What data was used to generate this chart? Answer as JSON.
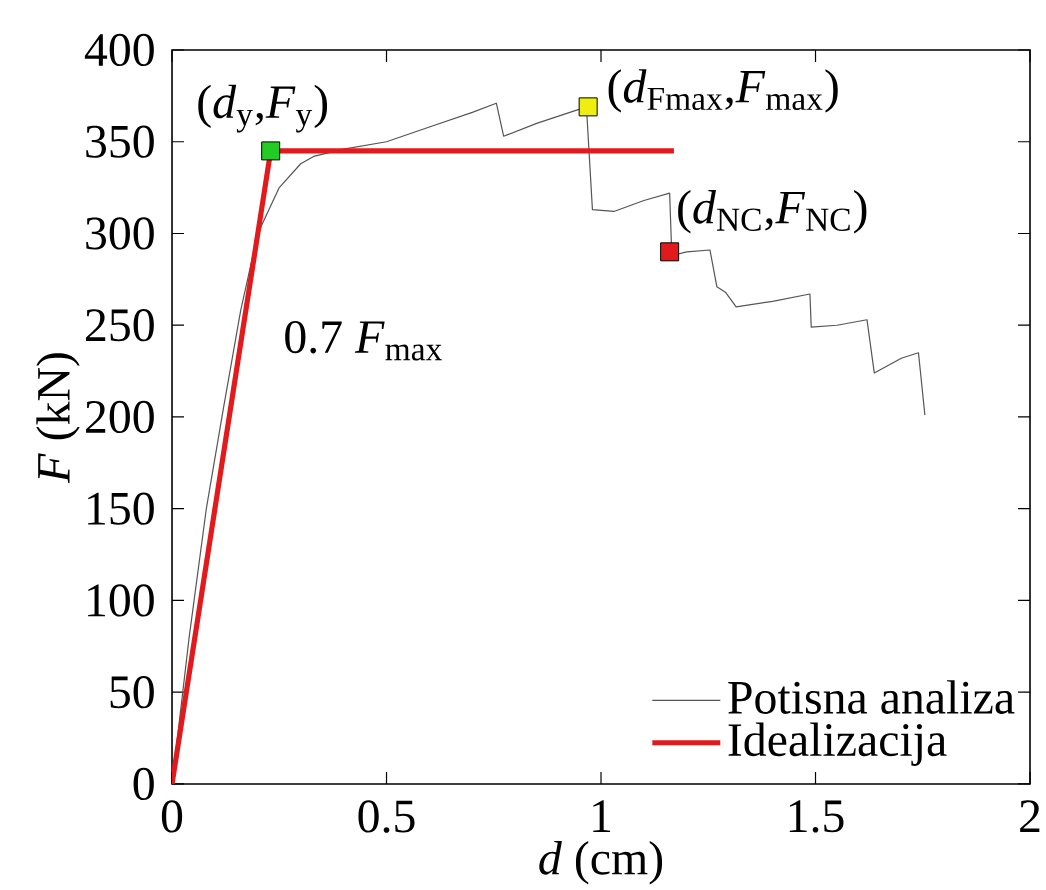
{
  "chart_data": {
    "type": "line",
    "xlabel": "*d* (cm)",
    "ylabel": "*F* (kN)",
    "xlim": [
      0,
      2
    ],
    "ylim": [
      0,
      400
    ],
    "xticks": [
      0,
      0.5,
      1,
      1.5,
      2
    ],
    "yticks": [
      0,
      50,
      100,
      150,
      200,
      250,
      300,
      350,
      400
    ],
    "grid": false,
    "legend": "bottom right",
    "series": [
      {
        "name": "Potisna analiza",
        "color": "#555555",
        "line_style": "solid",
        "marker": "none",
        "x": [
          0,
          0.04,
          0.08,
          0.12,
          0.16,
          0.2,
          0.25,
          0.3,
          0.33,
          0.4,
          0.5,
          0.6,
          0.7,
          0.756,
          0.773,
          0.85,
          0.966,
          0.98,
          1.03,
          1.1,
          1.16,
          1.165,
          1.2,
          1.254,
          1.27,
          1.29,
          1.315,
          1.4,
          1.487,
          1.49,
          1.55,
          1.62,
          1.637,
          1.7,
          1.74,
          1.755
        ],
        "values": [
          0,
          80,
          150,
          205,
          258,
          300,
          325,
          338,
          342,
          346,
          350,
          358,
          366,
          371,
          353,
          360,
          369,
          313,
          312,
          318,
          322,
          288,
          290,
          291,
          271,
          268,
          260,
          263,
          267,
          249,
          250,
          253,
          224,
          232,
          235,
          201
        ]
      },
      {
        "name": "Idealizacija",
        "color": "#e31a1c",
        "line_style": "solid",
        "marker": "none",
        "x": [
          0,
          0.23,
          1.17
        ],
        "values": [
          0,
          345,
          345
        ]
      },
      {
        "type": "scatter",
        "marker": "square",
        "x": [
          0.23,
          0.97,
          1.16
        ],
        "values": [
          345,
          369,
          290
        ],
        "colors": [
          "#22cc22",
          "#eeee11",
          "#e31a1c"
        ]
      }
    ],
    "annotations": [
      {
        "text": "(*d*$_{y}$,*F*$_{y}$)",
        "x": 0.23,
        "y": 345
      },
      {
        "text": "(*d*$_{Fmax}$,*F*$_{max}$)",
        "x": 0.97,
        "y": 369
      },
      {
        "text": "(*d*$_{NC}$,*F*$_{NC}$)",
        "x": 1.16,
        "y": 290
      },
      {
        "text": "0.7 *F*$_{max}$",
        "x": 0.17,
        "y": 258
      }
    ]
  }
}
